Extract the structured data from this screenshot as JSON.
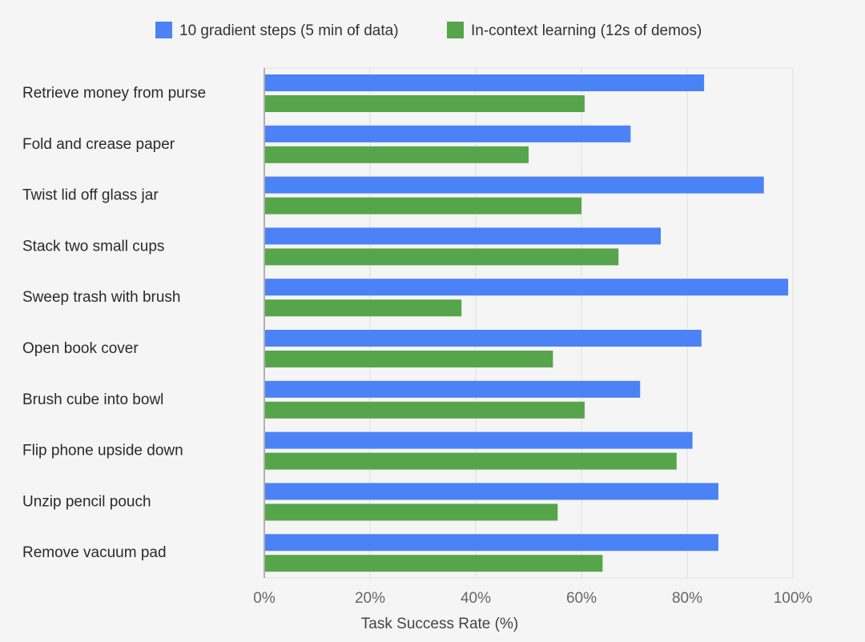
{
  "chart_data": {
    "type": "bar",
    "orientation": "horizontal",
    "title": "",
    "xlabel": "Task Success Rate (%)",
    "ylabel": "",
    "xlim": [
      0,
      100
    ],
    "x_ticks": [
      0,
      20,
      40,
      60,
      80,
      100
    ],
    "x_tick_labels": [
      "0%",
      "20%",
      "40%",
      "60%",
      "80%",
      "100%"
    ],
    "grid": true,
    "legend_position": "top-center",
    "categories": [
      "Retrieve money from purse",
      "Fold and crease paper",
      "Twist lid off glass jar",
      "Stack two small cups",
      "Sweep trash with brush",
      "Open book cover",
      "Brush cube into bowl",
      "Flip phone upside down",
      "Unzip pencil pouch",
      "Remove vacuum pad"
    ],
    "series": [
      {
        "name": "10 gradient steps (5 min of data)",
        "color": "#4b82f5",
        "values": [
          83.2,
          69.3,
          94.5,
          75.0,
          99.1,
          82.7,
          71.1,
          81.0,
          85.9,
          85.9
        ]
      },
      {
        "name": "In-context learning (12s of demos)",
        "color": "#56a54b",
        "values": [
          60.6,
          50.0,
          60.0,
          67.0,
          37.3,
          54.6,
          60.6,
          78.0,
          55.5,
          64.0
        ]
      }
    ]
  }
}
